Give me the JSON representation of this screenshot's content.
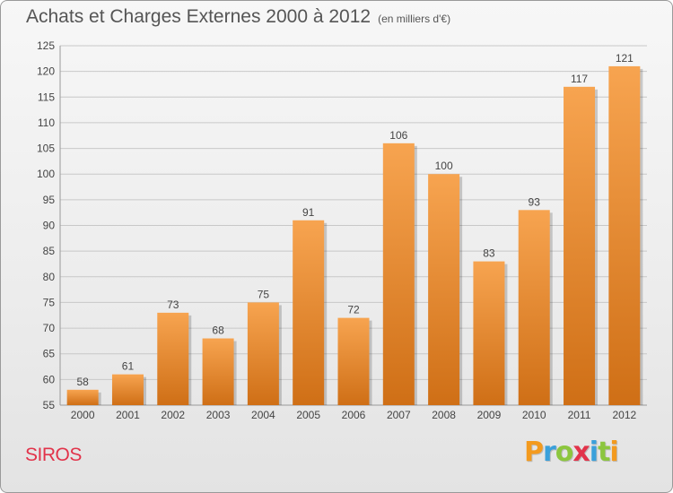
{
  "header": {
    "title": "Achats et Charges Externes 2000 à 2012",
    "subtitle": "(en milliers d'€)"
  },
  "footer": {
    "place": "SIROS",
    "logo": "Proxiti",
    "logo_letters": [
      {
        "ch": "P",
        "color": "#f39a1e"
      },
      {
        "ch": "r",
        "color": "#3aa0db"
      },
      {
        "ch": "o",
        "color": "#8cc63e"
      },
      {
        "ch": "x",
        "color": "#e2334a"
      },
      {
        "ch": "i",
        "color": "#3aa0db"
      },
      {
        "ch": "t",
        "color": "#8cc63e"
      },
      {
        "ch": "i",
        "color": "#f39a1e"
      }
    ]
  },
  "colors": {
    "bar_light": "#f7a450",
    "bar_dark": "#cf6f16",
    "grid": "#c8c8c8",
    "axis_text": "#444444",
    "place": "#e2334a"
  },
  "chart_data": {
    "type": "bar",
    "title": "Achats et Charges Externes 2000 à 2012",
    "subtitle": "(en milliers d'€)",
    "categories": [
      "2000",
      "2001",
      "2002",
      "2003",
      "2004",
      "2005",
      "2006",
      "2007",
      "2008",
      "2009",
      "2010",
      "2011",
      "2012"
    ],
    "values": [
      58,
      61,
      73,
      68,
      75,
      91,
      72,
      106,
      100,
      83,
      93,
      117,
      121
    ],
    "ylim": [
      55,
      125
    ],
    "yticks": [
      55,
      60,
      65,
      70,
      75,
      80,
      85,
      90,
      95,
      100,
      105,
      110,
      115,
      120,
      125
    ],
    "grid": true,
    "data_labels": true
  }
}
